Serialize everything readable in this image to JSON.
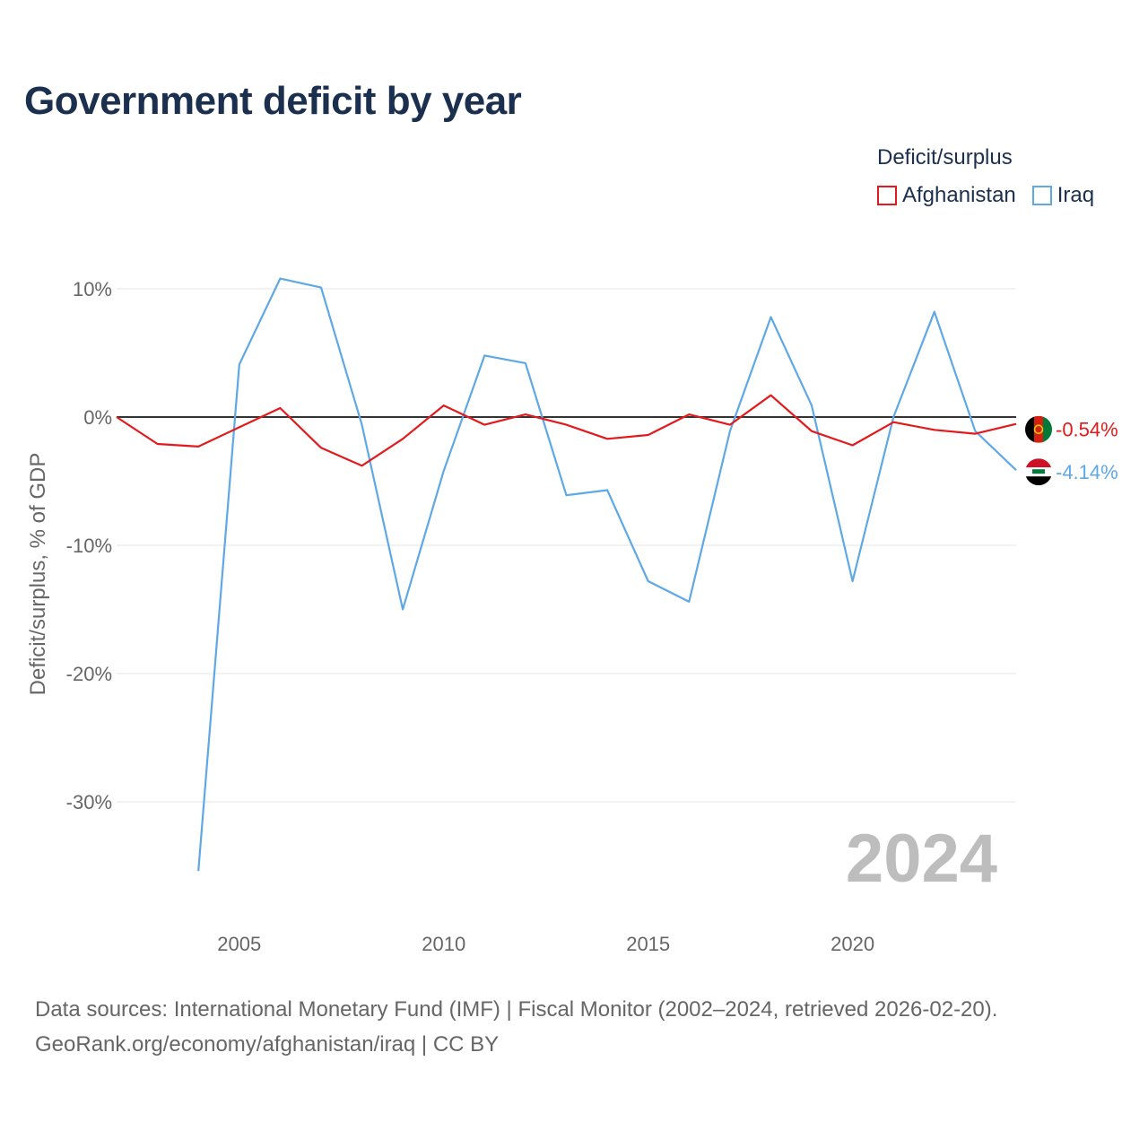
{
  "title": "Government deficit by year",
  "legend": {
    "title": "Deficit/surplus",
    "items": [
      {
        "name": "Afghanistan",
        "color": "#e31a1c"
      },
      {
        "name": "Iraq",
        "color": "#5ea8e6"
      }
    ]
  },
  "sources": {
    "line1": "Data sources: International Monetary Fund (IMF) | Fiscal Monitor (2002–2024, retrieved 2026-02-20).",
    "line2": "GeoRank.org/economy/afghanistan/iraq | CC BY"
  },
  "chart_data": {
    "type": "line",
    "title": "Government deficit by year",
    "xlabel": "",
    "ylabel": "Deficit/surplus, % of GDP",
    "xlim": [
      2002,
      2024
    ],
    "ylim": [
      -37,
      10.5
    ],
    "x_ticks": [
      2005,
      2010,
      2015,
      2020
    ],
    "y_ticks": [
      10,
      0,
      -10,
      -20,
      -30
    ],
    "y_tick_labels": [
      "10%",
      "0%",
      "-10%",
      "-20%",
      "-30%"
    ],
    "zero_line": true,
    "grid": true,
    "watermark_year": "2024",
    "series": [
      {
        "name": "Afghanistan",
        "color": "#e31a1c",
        "end_label": "-0.54%",
        "x": [
          2002,
          2003,
          2004,
          2005,
          2006,
          2007,
          2008,
          2009,
          2010,
          2011,
          2012,
          2013,
          2014,
          2015,
          2016,
          2017,
          2018,
          2019,
          2020,
          2021,
          2022,
          2023,
          2024
        ],
        "values": [
          0.0,
          -2.1,
          -2.3,
          -0.8,
          0.7,
          -2.4,
          -3.8,
          -1.7,
          0.9,
          -0.6,
          0.2,
          -0.6,
          -1.7,
          -1.4,
          0.2,
          -0.6,
          1.7,
          -1.1,
          -2.2,
          -0.4,
          -1.0,
          -1.3,
          -0.54
        ]
      },
      {
        "name": "Iraq",
        "color": "#5ea8e6",
        "end_label": "-4.14%",
        "x": [
          2004,
          2005,
          2006,
          2007,
          2008,
          2009,
          2010,
          2011,
          2012,
          2013,
          2014,
          2015,
          2016,
          2017,
          2018,
          2019,
          2020,
          2021,
          2022,
          2023,
          2024
        ],
        "values": [
          -35.4,
          4.1,
          10.8,
          10.1,
          -0.6,
          -15.0,
          -4.2,
          4.8,
          4.2,
          -6.1,
          -5.7,
          -12.8,
          -14.4,
          -1.1,
          7.8,
          0.9,
          -12.8,
          0.0,
          8.2,
          -1.1,
          -4.14
        ]
      }
    ]
  }
}
